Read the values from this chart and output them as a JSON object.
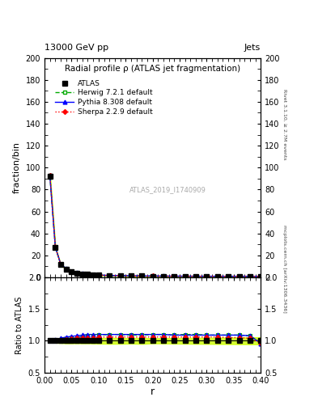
{
  "title": "Radial profile ρ (ATLAS jet fragmentation)",
  "top_left_label": "13000 GeV pp",
  "top_right_label": "Jets",
  "right_label_top": "Rivet 3.1.10, ≥ 2.7M events",
  "right_label_bottom": "mcplots.cern.ch [arXiv:1306.3436]",
  "watermark": "ATLAS_2019_I1740909",
  "ylabel_main": "fraction/bin",
  "ylabel_ratio": "Ratio to ATLAS",
  "xlabel": "r",
  "ylim_main": [
    0,
    200
  ],
  "ylim_ratio": [
    0.5,
    2.0
  ],
  "yticks_main": [
    0,
    20,
    40,
    60,
    80,
    100,
    120,
    140,
    160,
    180,
    200
  ],
  "yticks_ratio": [
    0.5,
    1.0,
    1.5,
    2.0
  ],
  "r_values": [
    0.01,
    0.02,
    0.03,
    0.04,
    0.05,
    0.06,
    0.07,
    0.08,
    0.09,
    0.1,
    0.12,
    0.14,
    0.16,
    0.18,
    0.2,
    0.22,
    0.24,
    0.26,
    0.28,
    0.3,
    0.32,
    0.34,
    0.36,
    0.38,
    0.4
  ],
  "atlas_values": [
    92.0,
    27.0,
    11.5,
    7.5,
    5.0,
    3.8,
    3.0,
    2.5,
    2.1,
    1.8,
    1.5,
    1.3,
    1.15,
    1.05,
    1.0,
    0.95,
    0.9,
    0.88,
    0.85,
    0.83,
    0.8,
    0.78,
    0.76,
    0.74,
    0.72
  ],
  "atlas_errors": [
    2.0,
    0.8,
    0.4,
    0.3,
    0.2,
    0.15,
    0.12,
    0.1,
    0.09,
    0.08,
    0.07,
    0.06,
    0.05,
    0.05,
    0.04,
    0.04,
    0.04,
    0.04,
    0.04,
    0.04,
    0.04,
    0.04,
    0.04,
    0.04,
    0.04
  ],
  "herwig_ratio": [
    1.0,
    1.01,
    1.02,
    1.03,
    1.04,
    1.05,
    1.07,
    1.08,
    1.08,
    1.09,
    1.1,
    1.1,
    1.09,
    1.09,
    1.1,
    1.1,
    1.09,
    1.1,
    1.1,
    1.09,
    1.09,
    1.09,
    1.09,
    1.08,
    0.97
  ],
  "pythia_ratio": [
    1.0,
    1.02,
    1.04,
    1.06,
    1.07,
    1.08,
    1.09,
    1.1,
    1.1,
    1.1,
    1.1,
    1.1,
    1.1,
    1.1,
    1.1,
    1.1,
    1.09,
    1.09,
    1.09,
    1.09,
    1.09,
    1.09,
    1.09,
    1.08,
    0.96
  ],
  "sherpa_ratio": [
    1.01,
    1.01,
    1.01,
    1.02,
    1.03,
    1.04,
    1.04,
    1.05,
    1.05,
    1.06,
    1.06,
    1.06,
    1.06,
    1.06,
    1.06,
    1.06,
    1.06,
    1.06,
    1.06,
    1.06,
    1.06,
    1.05,
    1.05,
    1.04,
    0.97
  ],
  "atlas_color": "#000000",
  "herwig_color": "#00aa00",
  "pythia_color": "#0000ff",
  "sherpa_color": "#ff0000",
  "band_color": "#ccff00",
  "background_color": "#ffffff",
  "legend_labels": [
    "ATLAS",
    "Herwig 7.2.1 default",
    "Pythia 8.308 default",
    "Sherpa 2.2.9 default"
  ]
}
